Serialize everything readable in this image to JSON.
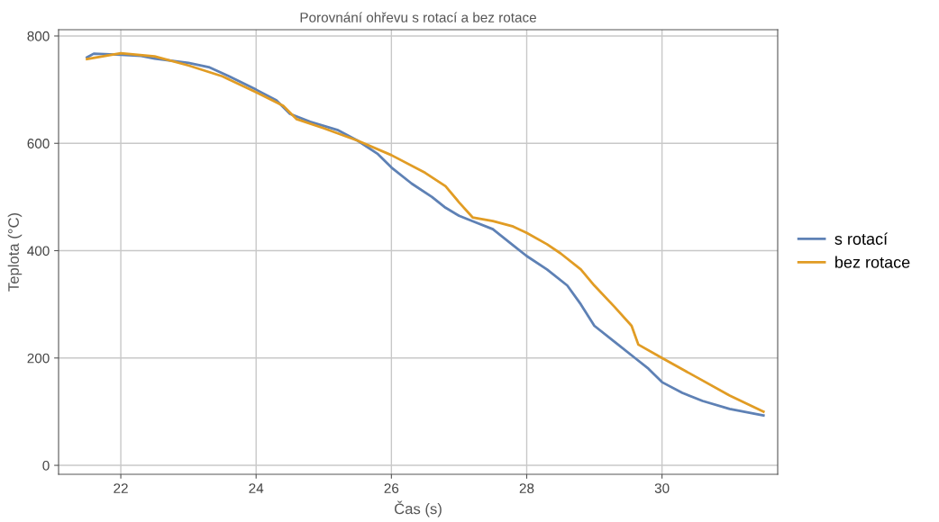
{
  "chart_data": {
    "type": "line",
    "title": "Porovnání ohřevu s rotací a bez rotace",
    "xlabel": "Čas (s)",
    "ylabel": "Teplota (°C)",
    "xlim": [
      21.08,
      31.71
    ],
    "ylim": [
      -16.7,
      811.7
    ],
    "xticks": [
      22,
      24,
      26,
      28,
      30
    ],
    "yticks": [
      0,
      200,
      400,
      600,
      800
    ],
    "grid": true,
    "legend": "right",
    "series": [
      {
        "name": "s rotací",
        "color": "#5e81b5",
        "x": [
          21.5,
          21.6,
          22.0,
          22.3,
          22.5,
          23.0,
          23.3,
          23.6,
          24.0,
          24.3,
          24.5,
          24.8,
          25.2,
          25.5,
          25.8,
          26.0,
          26.3,
          26.6,
          26.8,
          27.0,
          27.2,
          27.5,
          27.8,
          28.0,
          28.3,
          28.6,
          28.8,
          29.0,
          29.3,
          29.6,
          29.8,
          30.0,
          30.3,
          30.6,
          31.0,
          31.5
        ],
        "values": [
          760,
          767,
          765,
          763,
          758,
          750,
          742,
          725,
          700,
          680,
          655,
          640,
          625,
          605,
          580,
          555,
          525,
          500,
          480,
          465,
          455,
          440,
          410,
          390,
          365,
          335,
          300,
          260,
          230,
          200,
          180,
          155,
          135,
          120,
          105,
          93
        ]
      },
      {
        "name": "bez rotace",
        "color": "#e19c24",
        "x": [
          21.5,
          22.0,
          22.5,
          23.0,
          23.5,
          24.0,
          24.4,
          24.6,
          25.0,
          25.5,
          26.0,
          26.5,
          26.8,
          27.0,
          27.2,
          27.5,
          27.8,
          28.0,
          28.3,
          28.5,
          28.8,
          29.0,
          29.3,
          29.55,
          29.65,
          30.0,
          30.5,
          31.0,
          31.5
        ],
        "values": [
          757,
          768,
          762,
          745,
          725,
          695,
          670,
          645,
          628,
          605,
          578,
          545,
          520,
          490,
          462,
          455,
          445,
          433,
          412,
          395,
          365,
          335,
          295,
          260,
          225,
          200,
          165,
          130,
          100
        ]
      }
    ]
  }
}
